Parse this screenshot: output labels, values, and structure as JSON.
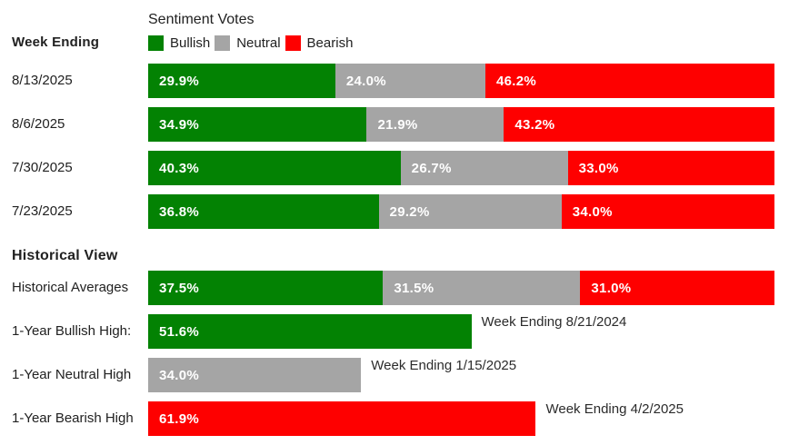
{
  "header": {
    "week_ending_label": "Week Ending",
    "title": "Sentiment Votes",
    "legend": [
      {
        "label": "Bullish",
        "series": "bullish"
      },
      {
        "label": "Neutral",
        "series": "neutral"
      },
      {
        "label": "Bearish",
        "series": "bearish"
      }
    ]
  },
  "historical_heading": "Historical View",
  "chart_data": {
    "type": "bar",
    "orientation": "horizontal",
    "stacked": true,
    "unit": "percent",
    "legend_position": "top",
    "colors": {
      "bullish": "#038203",
      "neutral": "#a5a5a5",
      "bearish": "#fe0000"
    },
    "series_names": [
      "Bullish",
      "Neutral",
      "Bearish"
    ],
    "weekly_rows": [
      {
        "label": "8/13/2025",
        "values": {
          "bullish": 29.9,
          "neutral": 24.0,
          "bearish": 46.2
        }
      },
      {
        "label": "8/6/2025",
        "values": {
          "bullish": 34.9,
          "neutral": 21.9,
          "bearish": 43.2
        }
      },
      {
        "label": "7/30/2025",
        "values": {
          "bullish": 40.3,
          "neutral": 26.7,
          "bearish": 33.0
        }
      },
      {
        "label": "7/23/2025",
        "values": {
          "bullish": 36.8,
          "neutral": 29.2,
          "bearish": 34.0
        }
      }
    ],
    "historical_rows": [
      {
        "label": "Historical Averages",
        "kind": "stacked",
        "values": {
          "bullish": 37.5,
          "neutral": 31.5,
          "bearish": 31.0
        }
      },
      {
        "label": "1-Year Bullish High:",
        "kind": "single",
        "series": "bullish",
        "value": 51.6,
        "annotation": "Week Ending 8/21/2024"
      },
      {
        "label": "1-Year Neutral High",
        "kind": "single",
        "series": "neutral",
        "value": 34.0,
        "annotation": "Week Ending 1/15/2025"
      },
      {
        "label": "1-Year Bearish High",
        "kind": "single",
        "series": "bearish",
        "value": 61.9,
        "annotation": "Week Ending 4/2/2025"
      }
    ]
  }
}
